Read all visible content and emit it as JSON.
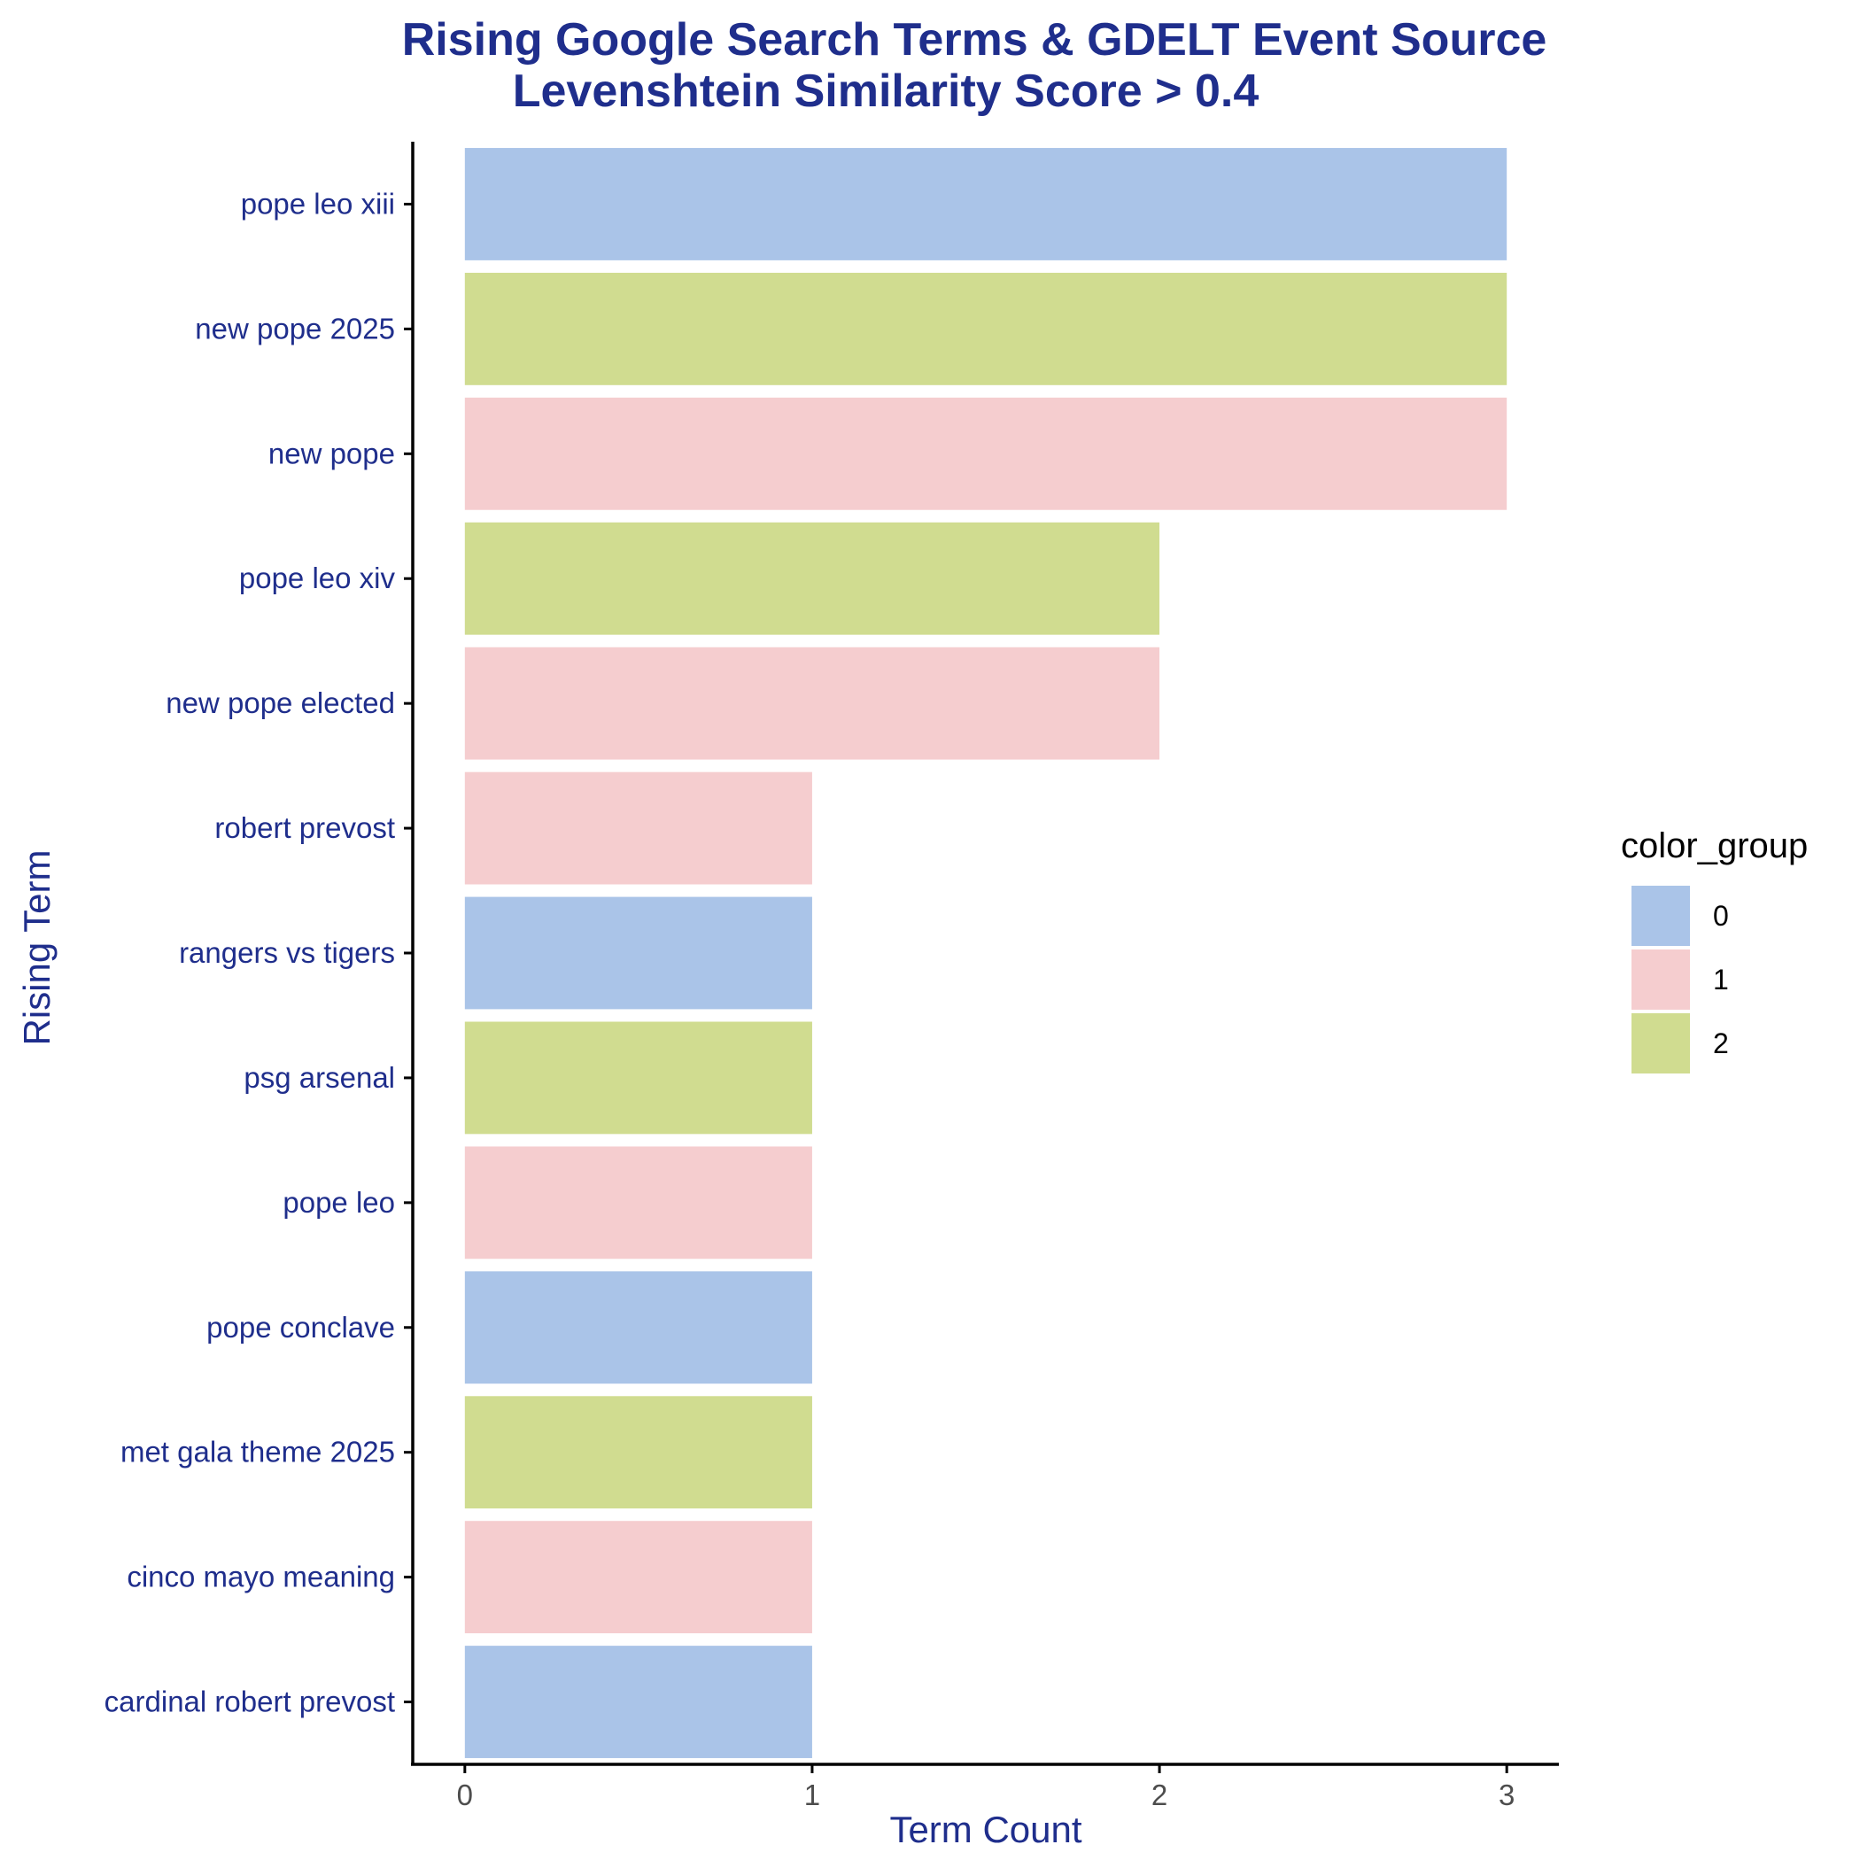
{
  "colors": {
    "title": "#1f2e8c",
    "axis_text": "#1f2e8c",
    "tick_label_x": "#4d4d4d",
    "axis_line": "#000000",
    "legend_text": "#000000"
  },
  "chart_data": {
    "type": "bar",
    "orientation": "horizontal",
    "title": "Rising Google Search Terms & GDELT Event Source",
    "subtitle": "Levenshtein Similarity Score > 0.4",
    "xlabel": "Term Count",
    "ylabel": "Rising Term",
    "xlim": [
      -0.15,
      3.15
    ],
    "x_ticks": [
      "0",
      "1",
      "2",
      "3"
    ],
    "grid": false,
    "legend_position": "right",
    "categories": [
      "pope leo xiii",
      "new pope 2025",
      "new pope",
      "pope leo xiv",
      "new pope elected",
      "robert prevost",
      "rangers vs tigers",
      "psg arsenal",
      "pope leo",
      "pope conclave",
      "met gala theme 2025",
      "cinco mayo meaning",
      "cardinal robert prevost"
    ],
    "values": [
      3,
      3,
      3,
      2,
      2,
      1,
      1,
      1,
      1,
      1,
      1,
      1,
      1
    ],
    "groups": [
      "0",
      "2",
      "1",
      "2",
      "1",
      "1",
      "0",
      "2",
      "1",
      "0",
      "2",
      "1",
      "0"
    ],
    "legend": {
      "title": "color_group",
      "entries": [
        {
          "label": "0",
          "color": "#aac4e8"
        },
        {
          "label": "1",
          "color": "#f5cdcf"
        },
        {
          "label": "2",
          "color": "#d0dc90"
        }
      ]
    }
  }
}
